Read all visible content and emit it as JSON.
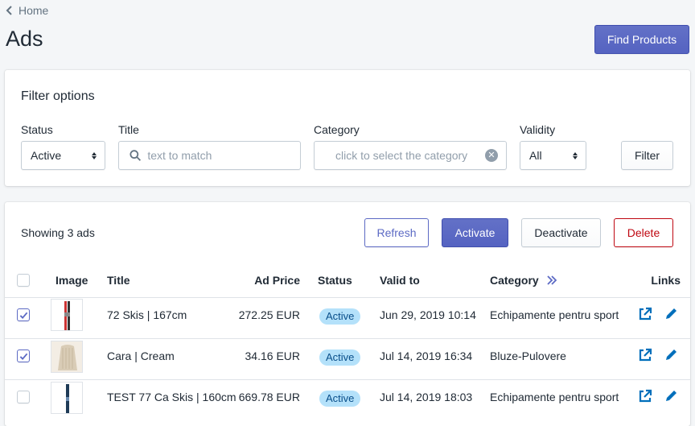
{
  "breadcrumb": {
    "label": "Home"
  },
  "page": {
    "title": "Ads",
    "primary_action": "Find Products"
  },
  "filter": {
    "heading": "Filter options",
    "status": {
      "label": "Status",
      "value": "Active"
    },
    "title": {
      "label": "Title",
      "placeholder": "text to match"
    },
    "category": {
      "label": "Category",
      "placeholder": "click to select the category"
    },
    "validity": {
      "label": "Validity",
      "value": "All"
    },
    "filter_button": "Filter"
  },
  "list": {
    "summary": "Showing 3 ads",
    "actions": {
      "refresh": "Refresh",
      "activate": "Activate",
      "deactivate": "Deactivate",
      "delete": "Delete"
    },
    "columns": {
      "image": "Image",
      "title": "Title",
      "ad_price": "Ad Price",
      "status": "Status",
      "valid_to": "Valid to",
      "category": "Category",
      "links": "Links"
    },
    "rows": [
      {
        "checked": true,
        "title": "72 Skis | 167cm",
        "price": "272.25 EUR",
        "status": "Active",
        "valid_to": "Jun 29, 2019 10:14",
        "category": "Echipamente pentru sport",
        "thumb": "skis"
      },
      {
        "checked": true,
        "title": "Cara | Cream",
        "price": "34.16 EUR",
        "status": "Active",
        "valid_to": "Jul 14, 2019 16:34",
        "category": "Bluze-Pulovere",
        "thumb": "sweater"
      },
      {
        "checked": false,
        "title": "TEST 77 Ca Skis | 160cm",
        "price": "669.78 EUR",
        "status": "Active",
        "valid_to": "Jul 14, 2019 18:03",
        "category": "Echipamente pentru sport",
        "thumb": "ski"
      }
    ]
  },
  "colors": {
    "primary": "#5c6ac4",
    "danger": "#bf0711",
    "badge_bg": "#b4e1fa",
    "link_icon": "#006fbb"
  }
}
